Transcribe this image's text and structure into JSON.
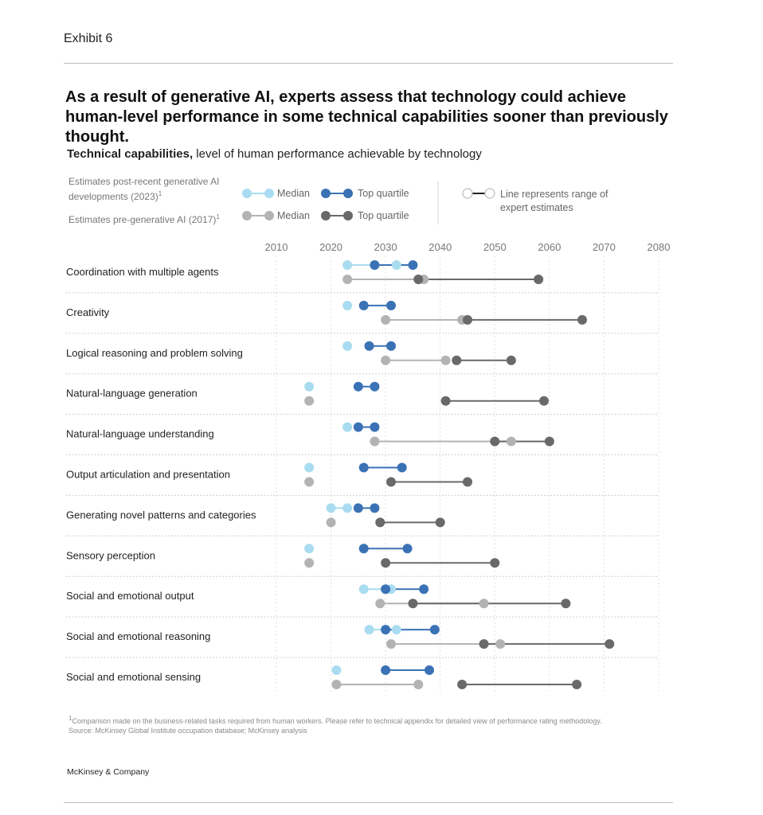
{
  "header": {
    "exhibit": "Exhibit 6",
    "title": "As a result of generative AI, experts assess that technology could achieve human-level performance in some technical capabilities sooner than previously thought.",
    "subtitle_bold": "Technical capabilities,",
    "subtitle_rest": " level of human performance achievable by technology"
  },
  "legend": {
    "post_label": "Estimates post-recent generative AI developments (2023)",
    "pre_label": "Estimates pre-generative AI (2017)",
    "footnote_marker": "1",
    "median": "Median",
    "top_quartile": "Top quartile",
    "range_note": "Line represents range of expert estimates"
  },
  "colors": {
    "post_median": "#a9dcf0",
    "post_top": "#3a72b5",
    "pre_median": "#b3b3b3",
    "pre_top": "#696969"
  },
  "footer": {
    "footnote": "Comparison made on the business-related tasks required from human workers. Please refer to technical appendix for detailed view of performance rating methodology.",
    "source": "Source: McKinsey Global Institute occupation database; McKinsey analysis",
    "brand": "McKinsey & Company"
  },
  "chart_data": {
    "type": "range dot plot",
    "x_ticks": [
      2010,
      2020,
      2030,
      2040,
      2050,
      2060,
      2070,
      2080
    ],
    "xlim": [
      2010,
      2080
    ],
    "grid": true,
    "rows": [
      {
        "label": "Coordination with multiple agents",
        "post_median": [
          2023,
          2032
        ],
        "post_top": [
          2028,
          2035
        ],
        "pre_median": [
          2023,
          2037
        ],
        "pre_top": [
          2036,
          2058
        ]
      },
      {
        "label": "Creativity",
        "post_median": [
          2023
        ],
        "post_top": [
          2026,
          2031
        ],
        "pre_median": [
          2030,
          2044
        ],
        "pre_top": [
          2045,
          2066
        ]
      },
      {
        "label": "Logical reasoning and problem solving",
        "post_median": [
          2023
        ],
        "post_top": [
          2027,
          2031
        ],
        "pre_median": [
          2030,
          2041
        ],
        "pre_top": [
          2043,
          2053
        ]
      },
      {
        "label": "Natural-language generation",
        "post_median": [
          2016
        ],
        "post_top": [
          2025,
          2028
        ],
        "pre_median": [
          2016
        ],
        "pre_top": [
          2041,
          2059
        ]
      },
      {
        "label": "Natural-language understanding",
        "post_median": [
          2023
        ],
        "post_top": [
          2025,
          2028
        ],
        "pre_median": [
          2028,
          2053
        ],
        "pre_top": [
          2050,
          2060
        ]
      },
      {
        "label": "Output articulation and presentation",
        "post_median": [
          2016
        ],
        "post_top": [
          2026,
          2033
        ],
        "pre_median": [
          2016
        ],
        "pre_top": [
          2031,
          2045
        ]
      },
      {
        "label": "Generating novel patterns and categories",
        "post_median": [
          2020,
          2023
        ],
        "post_top": [
          2025,
          2028
        ],
        "pre_median": [
          2020
        ],
        "pre_top": [
          2029,
          2040
        ]
      },
      {
        "label": "Sensory perception",
        "post_median": [
          2016
        ],
        "post_top": [
          2026,
          2034
        ],
        "pre_median": [
          2016
        ],
        "pre_top": [
          2030,
          2050
        ]
      },
      {
        "label": "Social and emotional output",
        "post_median": [
          2026,
          2031
        ],
        "post_top": [
          2030,
          2037
        ],
        "pre_median": [
          2029,
          2048
        ],
        "pre_top": [
          2035,
          2063
        ]
      },
      {
        "label": "Social and emotional reasoning",
        "post_median": [
          2027,
          2032
        ],
        "post_top": [
          2030,
          2039
        ],
        "pre_median": [
          2031,
          2051
        ],
        "pre_top": [
          2048,
          2071
        ]
      },
      {
        "label": "Social and emotional sensing",
        "post_median": [
          2021
        ],
        "post_top": [
          2030,
          2038
        ],
        "pre_median": [
          2021,
          2036
        ],
        "pre_top": [
          2044,
          2065
        ]
      }
    ]
  }
}
